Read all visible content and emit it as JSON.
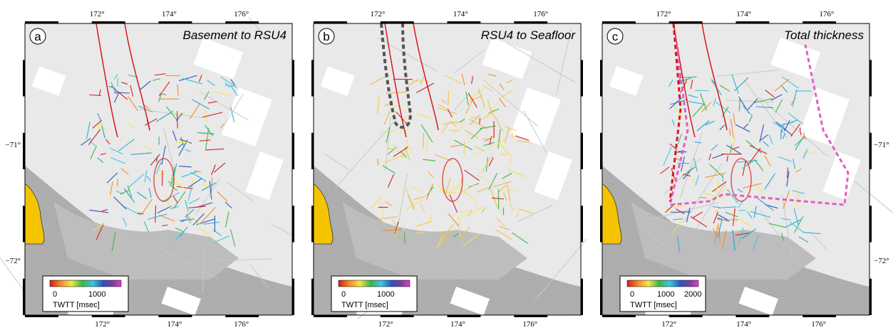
{
  "panels": [
    {
      "letter": "a",
      "title": "Basement to RSU4",
      "top_labels": [
        "172°",
        "174°",
        "176°"
      ],
      "bottom_labels": [
        "172°",
        "174°",
        "176°"
      ],
      "lat_labels": [
        "−71°",
        "−72°"
      ],
      "colorbar_ticks": [
        0,
        1000
      ],
      "colorbar_label": "TWTT [msec]"
    },
    {
      "letter": "b",
      "title": "RSU4 to Seafloor",
      "top_labels": [
        "172°",
        "174°",
        "176°"
      ],
      "bottom_labels": [
        "172°",
        "174°",
        "176°"
      ],
      "colorbar_ticks": [
        0,
        1000
      ],
      "colorbar_label": "TWTT [msec]"
    },
    {
      "letter": "c",
      "title": "Total thickness",
      "top_labels": [
        "172°",
        "174°",
        "176°"
      ],
      "bottom_labels": [
        "172°",
        "174°",
        "176°"
      ],
      "lat_labels": [
        "−71°",
        "−72°"
      ],
      "colorbar_ticks": [
        0,
        1000,
        2000
      ],
      "colorbar_label": "TWTT [msec]"
    }
  ]
}
